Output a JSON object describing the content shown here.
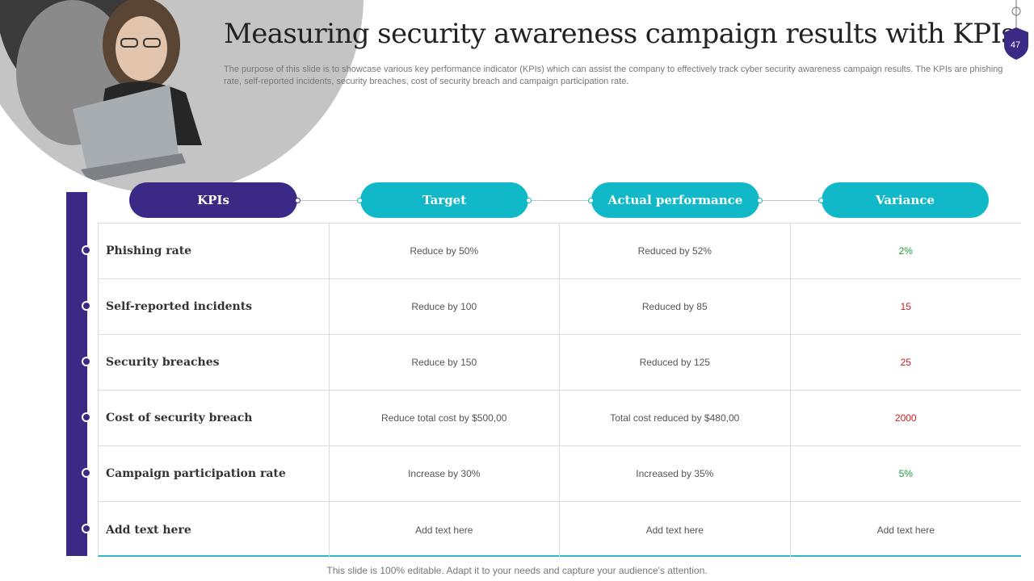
{
  "header": {
    "title": "Measuring security awareness campaign results with KPIs",
    "description": "The purpose of this slide is to showcase various key performance indicator (KPIs) which can assist the company to effectively track cyber security awareness campaign results. The KPIs are phishing rate, self-reported incidents, security breaches, cost of security breach and campaign participation rate.",
    "slide_number": "47"
  },
  "table": {
    "columns": [
      "KPIs",
      "Target",
      "Actual performance",
      "Variance"
    ],
    "rows": [
      {
        "kpi": "Phishing rate",
        "target": "Reduce  by 50%",
        "actual": "Reduced  by 52%",
        "variance": "2%",
        "variance_color": "#1e9b3a"
      },
      {
        "kpi": "Self-reported incidents",
        "target": "Reduce  by 100",
        "actual": "Reduced  by 85",
        "variance": "15",
        "variance_color": "#c41e1e"
      },
      {
        "kpi": "Security breaches",
        "target": "Reduce  by 150",
        "actual": "Reduced  by 125",
        "variance": "25",
        "variance_color": "#c41e1e"
      },
      {
        "kpi": "Cost of security breach",
        "target": "Reduce  total cost by $500,00",
        "actual": "Total cost reduced  by $480,00",
        "variance": "2000",
        "variance_color": "#c41e1e"
      },
      {
        "kpi": "Campaign participation rate",
        "target": "Increase  by 30%",
        "actual": "Increased  by 35%",
        "variance": "5%",
        "variance_color": "#1e9b3a"
      },
      {
        "kpi": "Add text here",
        "target": "Add text here",
        "actual": "Add text here",
        "variance": "Add text here",
        "variance_color": "#555555"
      }
    ]
  },
  "footer": {
    "note": "This slide is 100% editable. Adapt it to your needs and capture your audience's attention."
  },
  "colors": {
    "primary_purple": "#3b2a85",
    "accent_teal": "#10b8c8",
    "positive_green": "#1e9b3a",
    "negative_red": "#c41e1e"
  }
}
